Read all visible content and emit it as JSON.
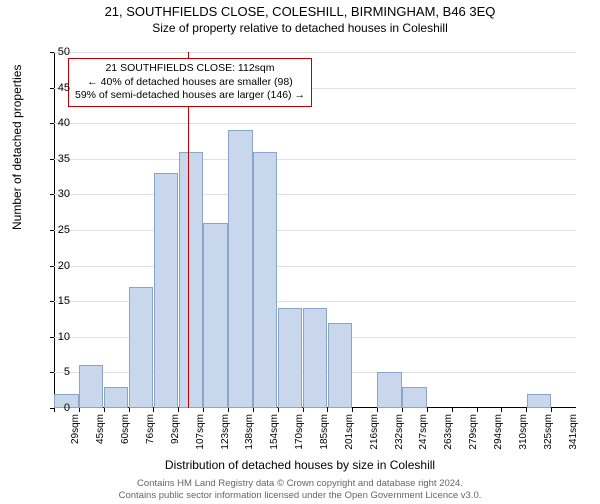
{
  "title": "21, SOUTHFIELDS CLOSE, COLESHILL, BIRMINGHAM, B46 3EQ",
  "subtitle": "Size of property relative to detached houses in Coleshill",
  "ylabel": "Number of detached properties",
  "xlabel": "Distribution of detached houses by size in Coleshill",
  "footer_line1": "Contains HM Land Registry data © Crown copyright and database right 2024.",
  "footer_line2": "Contains public sector information licensed under the Open Government Licence v3.0.",
  "chart": {
    "type": "histogram",
    "ylim": [
      0,
      50
    ],
    "ytick_step": 5,
    "bar_color": "#c9d7ed",
    "bar_border_color": "#8aa5c9",
    "grid_color": "#e0e0e0",
    "background_color": "#ffffff",
    "marker_color": "#c00000",
    "marker_x_index": 5.38,
    "categories": [
      "29sqm",
      "45sqm",
      "60sqm",
      "76sqm",
      "92sqm",
      "107sqm",
      "123sqm",
      "138sqm",
      "154sqm",
      "170sqm",
      "185sqm",
      "201sqm",
      "216sqm",
      "232sqm",
      "247sqm",
      "263sqm",
      "279sqm",
      "294sqm",
      "310sqm",
      "325sqm",
      "341sqm"
    ],
    "values": [
      2,
      6,
      3,
      17,
      33,
      36,
      26,
      39,
      36,
      14,
      14,
      12,
      0,
      5,
      3,
      0,
      0,
      0,
      0,
      2,
      0
    ],
    "bar_width": 0.98
  },
  "annotation": {
    "line1": "21 SOUTHFIELDS CLOSE: 112sqm",
    "line2": "← 40% of detached houses are smaller (98)",
    "line3": "59% of semi-detached houses are larger (146) →",
    "border_color": "#c00000",
    "fontsize": 10.5
  }
}
